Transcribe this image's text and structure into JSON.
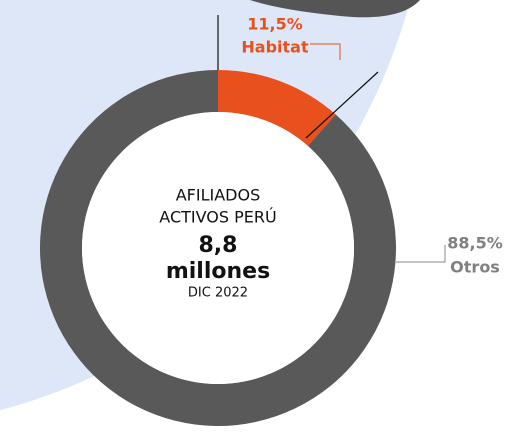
{
  "chart_data": {
    "type": "donut",
    "categories": [
      "Habitat",
      "Otros"
    ],
    "values": [
      11.5,
      88.5
    ],
    "value_labels": [
      "11,5%",
      "88,5%"
    ],
    "colors": [
      "#e8501e",
      "#595959"
    ],
    "annotations": [
      "AFILIADOS",
      "ACTIVOS PERÚ",
      "8,8",
      "millones",
      "DIC 2022"
    ]
  }
}
